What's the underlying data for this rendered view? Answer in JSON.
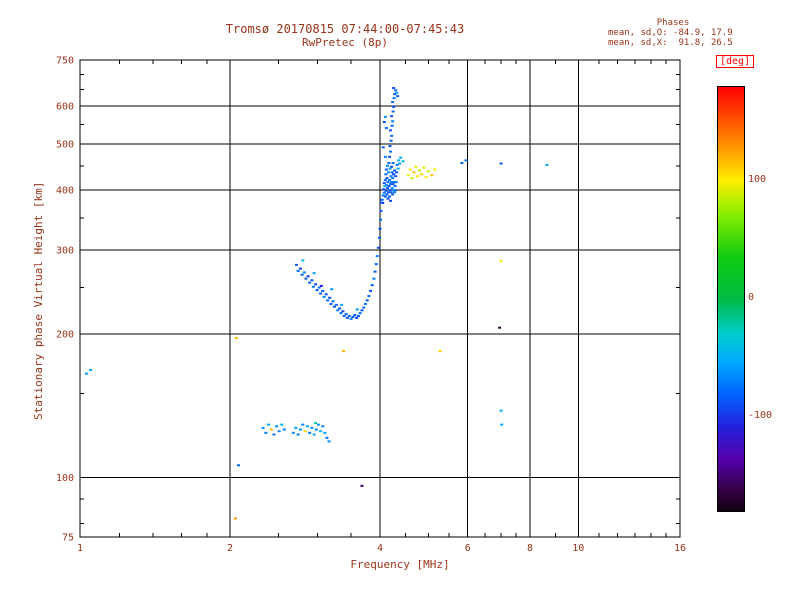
{
  "header": {
    "title": "Tromsø 20170815 07:44:00-07:45:43",
    "subtitle": "RwPretec (8p)",
    "stats_title": "Phases",
    "stats_line_o": "mean, sd,O: -84.9, 17.9",
    "stats_line_x": "mean, sd,X:  91.8, 26.5"
  },
  "colors": {
    "text": "#9a3318",
    "accent_red": "#ff0000",
    "grid": "#000000"
  },
  "chart_data": {
    "type": "scatter",
    "title": "Tromsø 20170815 07:44:00-07:45:43",
    "subtitle": "RwPretec (8p)",
    "xlabel": "Frequency [MHz]",
    "ylabel": "Stationary phase Virtual Height [km]",
    "xscale": "log",
    "yscale": "log",
    "xlim": [
      1,
      16
    ],
    "ylim": [
      75,
      750
    ],
    "xticks_labeled": [
      1,
      2,
      4,
      6,
      8,
      10,
      16
    ],
    "xticks_minor": [
      1.2,
      1.4,
      1.6,
      1.8,
      2.5,
      3,
      3.5,
      4.5,
      5,
      5.5,
      6.5,
      7,
      7.5,
      9,
      11,
      12,
      13,
      14,
      15
    ],
    "yticks_labeled": [
      75,
      100,
      200,
      300,
      400,
      500,
      600,
      750
    ],
    "yticks_minor": [
      80,
      90,
      150,
      250,
      350,
      450,
      550,
      650,
      700
    ],
    "x_gridlines": [
      2,
      4,
      6,
      8,
      10
    ],
    "y_gridlines": [
      100,
      200,
      300,
      400,
      500,
      600
    ],
    "grid": true,
    "colorbar": {
      "label": "[deg]",
      "ticks": [
        100,
        0,
        -100
      ],
      "range": [
        -180,
        180
      ],
      "gradient": [
        {
          "t": 0.0,
          "c": "#ff0000"
        },
        {
          "t": 0.08,
          "c": "#ff5500"
        },
        {
          "t": 0.16,
          "c": "#ffaa00"
        },
        {
          "t": 0.22,
          "c": "#ffee00"
        },
        {
          "t": 0.3,
          "c": "#88ee00"
        },
        {
          "t": 0.4,
          "c": "#11cc11"
        },
        {
          "t": 0.5,
          "c": "#00bb44"
        },
        {
          "t": 0.58,
          "c": "#00cccc"
        },
        {
          "t": 0.65,
          "c": "#00aaff"
        },
        {
          "t": 0.72,
          "c": "#0066ff"
        },
        {
          "t": 0.8,
          "c": "#2222dd"
        },
        {
          "t": 0.88,
          "c": "#5500aa"
        },
        {
          "t": 0.95,
          "c": "#330044"
        },
        {
          "t": 1.0,
          "c": "#110011"
        }
      ]
    },
    "points_format": [
      "frequency_MHz",
      "virtual_height_km",
      "phase_deg"
    ],
    "points": [
      [
        2.72,
        279,
        -88
      ],
      [
        2.74,
        271,
        -76
      ],
      [
        2.77,
        274,
        -92
      ],
      [
        2.79,
        266,
        -80
      ],
      [
        2.82,
        269,
        -70
      ],
      [
        2.84,
        261,
        -86
      ],
      [
        2.87,
        264,
        -94
      ],
      [
        2.89,
        256,
        -78
      ],
      [
        2.92,
        259,
        -84
      ],
      [
        2.94,
        251,
        -72
      ],
      [
        2.97,
        254,
        -90
      ],
      [
        2.99,
        247,
        -82
      ],
      [
        3.02,
        250,
        -74
      ],
      [
        3.04,
        243,
        -88
      ],
      [
        3.07,
        246,
        -80
      ],
      [
        3.09,
        239,
        -68
      ],
      [
        3.12,
        242,
        -86
      ],
      [
        3.14,
        235,
        -78
      ],
      [
        3.17,
        238,
        -92
      ],
      [
        3.19,
        231,
        -82
      ],
      [
        3.22,
        234,
        -74
      ],
      [
        3.24,
        228,
        -88
      ],
      [
        3.27,
        230,
        -80
      ],
      [
        3.29,
        224,
        -70
      ],
      [
        3.32,
        226,
        -86
      ],
      [
        3.34,
        221,
        -78
      ],
      [
        3.37,
        223,
        -92
      ],
      [
        3.39,
        218,
        -84
      ],
      [
        3.42,
        220,
        -76
      ],
      [
        3.44,
        216,
        -88
      ],
      [
        3.47,
        218,
        -80
      ],
      [
        3.5,
        215,
        -72
      ],
      [
        3.53,
        217,
        -86
      ],
      [
        3.56,
        219,
        -78
      ],
      [
        3.59,
        216,
        -92
      ],
      [
        3.62,
        218,
        -84
      ],
      [
        3.65,
        221,
        -76
      ],
      [
        3.68,
        224,
        -88
      ],
      [
        3.71,
        227,
        -80
      ],
      [
        3.74,
        231,
        -72
      ],
      [
        3.77,
        235,
        -86
      ],
      [
        3.8,
        240,
        -78
      ],
      [
        3.83,
        246,
        -90
      ],
      [
        3.86,
        253,
        -82
      ],
      [
        3.89,
        261,
        -74
      ],
      [
        3.91,
        270,
        -88
      ],
      [
        3.93,
        280,
        -80
      ],
      [
        3.95,
        291,
        -72
      ],
      [
        3.97,
        303,
        -86
      ],
      [
        2.8,
        285,
        -50
      ],
      [
        2.95,
        268,
        -58
      ],
      [
        3.05,
        252,
        -115
      ],
      [
        3.2,
        248,
        -62
      ],
      [
        3.35,
        230,
        -55
      ],
      [
        3.6,
        225,
        -60
      ],
      [
        3.99,
        318,
        -80
      ],
      [
        4.0,
        332,
        -88
      ],
      [
        4.01,
        347,
        -74
      ],
      [
        4.02,
        362,
        -84
      ],
      [
        4.03,
        377,
        -78
      ],
      [
        4.04,
        382,
        -82
      ],
      [
        4.05,
        376,
        -94
      ],
      [
        4.06,
        390,
        -78
      ],
      [
        4.07,
        402,
        -86
      ],
      [
        4.08,
        395,
        -72
      ],
      [
        4.08,
        414,
        -90
      ],
      [
        4.09,
        408,
        -60
      ],
      [
        4.1,
        388,
        -82
      ],
      [
        4.1,
        420,
        -74
      ],
      [
        4.11,
        399,
        -88
      ],
      [
        4.11,
        432,
        -80
      ],
      [
        4.12,
        410,
        -68
      ],
      [
        4.12,
        442,
        -86
      ],
      [
        4.13,
        392,
        -78
      ],
      [
        4.13,
        424,
        -92
      ],
      [
        4.14,
        404,
        -82
      ],
      [
        4.14,
        450,
        -70
      ],
      [
        4.15,
        384,
        -88
      ],
      [
        4.15,
        416,
        -76
      ],
      [
        4.16,
        396,
        -84
      ],
      [
        4.16,
        436,
        -66
      ],
      [
        4.17,
        408,
        -90
      ],
      [
        4.17,
        456,
        -78
      ],
      [
        4.18,
        388,
        -82
      ],
      [
        4.18,
        420,
        -74
      ],
      [
        4.19,
        400,
        -88
      ],
      [
        4.19,
        444,
        -60
      ],
      [
        4.2,
        412,
        -80
      ],
      [
        4.2,
        380,
        -92
      ],
      [
        4.21,
        428,
        -72
      ],
      [
        4.21,
        396,
        -84
      ],
      [
        4.22,
        416,
        -76
      ],
      [
        4.22,
        448,
        -88
      ],
      [
        4.23,
        404,
        -68
      ],
      [
        4.23,
        436,
        -82
      ],
      [
        4.24,
        392,
        -90
      ],
      [
        4.24,
        424,
        -74
      ],
      [
        4.25,
        412,
        -86
      ],
      [
        4.25,
        456,
        -78
      ],
      [
        4.26,
        400,
        -64
      ],
      [
        4.26,
        432,
        -88
      ],
      [
        4.27,
        416,
        -80
      ],
      [
        4.28,
        396,
        -72
      ],
      [
        4.28,
        440,
        -86
      ],
      [
        4.29,
        408,
        -78
      ],
      [
        4.3,
        428,
        -90
      ],
      [
        4.3,
        400,
        -82
      ],
      [
        4.31,
        416,
        -70
      ],
      [
        4.32,
        436,
        -84
      ],
      [
        4.33,
        452,
        -76
      ],
      [
        4.35,
        444,
        -55
      ],
      [
        4.36,
        462,
        -48
      ],
      [
        4.38,
        455,
        -60
      ],
      [
        4.4,
        468,
        -52
      ],
      [
        4.45,
        460,
        -45
      ],
      [
        4.1,
        470,
        -70
      ],
      [
        4.06,
        492,
        -82
      ],
      [
        4.18,
        470,
        -85
      ],
      [
        4.2,
        482,
        -78
      ],
      [
        4.19,
        495,
        -90
      ],
      [
        4.21,
        508,
        -82
      ],
      [
        4.22,
        520,
        -74
      ],
      [
        4.2,
        534,
        -88
      ],
      [
        4.23,
        546,
        -80
      ],
      [
        4.24,
        558,
        -70
      ],
      [
        4.22,
        572,
        -86
      ],
      [
        4.25,
        585,
        -78
      ],
      [
        4.26,
        598,
        -90
      ],
      [
        4.24,
        612,
        -82
      ],
      [
        4.27,
        624,
        -74
      ],
      [
        4.28,
        636,
        -86
      ],
      [
        4.3,
        648,
        -78
      ],
      [
        4.26,
        655,
        -92
      ],
      [
        4.32,
        640,
        -60
      ],
      [
        4.34,
        630,
        -85
      ],
      [
        4.12,
        540,
        -76
      ],
      [
        4.08,
        556,
        -88
      ],
      [
        4.1,
        570,
        -65
      ],
      [
        4.56,
        430,
        95
      ],
      [
        4.6,
        442,
        108
      ],
      [
        4.64,
        424,
        88
      ],
      [
        4.68,
        436,
        118
      ],
      [
        4.72,
        448,
        96
      ],
      [
        4.76,
        428,
        104
      ],
      [
        4.8,
        440,
        86
      ],
      [
        4.85,
        432,
        112
      ],
      [
        4.9,
        446,
        94
      ],
      [
        4.95,
        426,
        100
      ],
      [
        5.0,
        438,
        90
      ],
      [
        5.08,
        430,
        116
      ],
      [
        5.15,
        442,
        98
      ],
      [
        1.03,
        165,
        -58
      ],
      [
        1.05,
        168,
        -55
      ],
      [
        2.06,
        196,
        115
      ],
      [
        2.08,
        106,
        -80
      ],
      [
        2.05,
        82,
        130
      ],
      [
        3.68,
        96,
        -155
      ],
      [
        3.38,
        184,
        120
      ],
      [
        5.28,
        184,
        110
      ],
      [
        5.84,
        456,
        -82
      ],
      [
        5.95,
        462,
        -74
      ],
      [
        7.0,
        455,
        -85
      ],
      [
        8.65,
        452,
        -50
      ],
      [
        7.0,
        284,
        100
      ],
      [
        6.95,
        206,
        -170
      ],
      [
        7.0,
        138,
        -50
      ],
      [
        7.02,
        129,
        -55
      ],
      [
        2.33,
        127,
        -62
      ],
      [
        2.36,
        124,
        -70
      ],
      [
        2.39,
        129,
        -55
      ],
      [
        2.42,
        126,
        118
      ],
      [
        2.45,
        123,
        -75
      ],
      [
        2.48,
        128,
        -60
      ],
      [
        2.51,
        125,
        -68
      ],
      [
        2.54,
        129,
        -52
      ],
      [
        2.57,
        126,
        -72
      ],
      [
        2.68,
        124,
        -64
      ],
      [
        2.71,
        127,
        -56
      ],
      [
        2.74,
        123,
        -74
      ],
      [
        2.77,
        126,
        -60
      ],
      [
        2.8,
        129,
        -68
      ],
      [
        2.83,
        125,
        105
      ],
      [
        2.86,
        128,
        -58
      ],
      [
        2.89,
        124,
        -72
      ],
      [
        2.92,
        127,
        -64
      ],
      [
        2.95,
        123,
        -55
      ],
      [
        2.97,
        130,
        -20
      ],
      [
        2.98,
        126,
        -70
      ],
      [
        3.01,
        129,
        -62
      ],
      [
        3.04,
        125,
        -48
      ],
      [
        3.07,
        128,
        -66
      ],
      [
        3.1,
        124,
        -58
      ],
      [
        3.13,
        121,
        -72
      ],
      [
        3.16,
        119,
        -64
      ]
    ]
  }
}
